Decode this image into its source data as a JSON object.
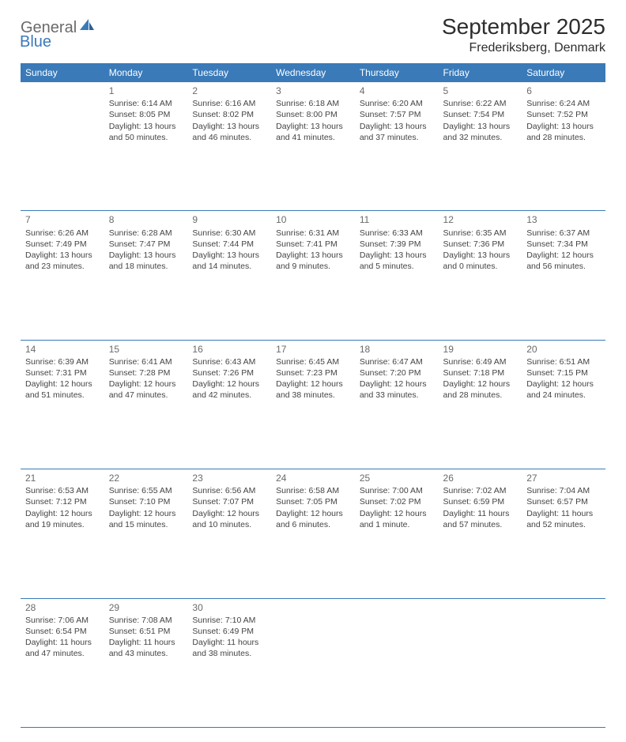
{
  "logo": {
    "part1": "General",
    "part2": "Blue"
  },
  "title": "September 2025",
  "location": "Frederiksberg, Denmark",
  "colors": {
    "header_bg": "#3a7ab8",
    "header_text": "#ffffff",
    "body_text": "#444444",
    "day_num": "#6a6a6a",
    "divider": "#3a7ab8"
  },
  "days_of_week": [
    "Sunday",
    "Monday",
    "Tuesday",
    "Wednesday",
    "Thursday",
    "Friday",
    "Saturday"
  ],
  "weeks": [
    [
      null,
      {
        "n": "1",
        "sunrise": "6:14 AM",
        "sunset": "8:05 PM",
        "daylight": "13 hours and 50 minutes."
      },
      {
        "n": "2",
        "sunrise": "6:16 AM",
        "sunset": "8:02 PM",
        "daylight": "13 hours and 46 minutes."
      },
      {
        "n": "3",
        "sunrise": "6:18 AM",
        "sunset": "8:00 PM",
        "daylight": "13 hours and 41 minutes."
      },
      {
        "n": "4",
        "sunrise": "6:20 AM",
        "sunset": "7:57 PM",
        "daylight": "13 hours and 37 minutes."
      },
      {
        "n": "5",
        "sunrise": "6:22 AM",
        "sunset": "7:54 PM",
        "daylight": "13 hours and 32 minutes."
      },
      {
        "n": "6",
        "sunrise": "6:24 AM",
        "sunset": "7:52 PM",
        "daylight": "13 hours and 28 minutes."
      }
    ],
    [
      {
        "n": "7",
        "sunrise": "6:26 AM",
        "sunset": "7:49 PM",
        "daylight": "13 hours and 23 minutes."
      },
      {
        "n": "8",
        "sunrise": "6:28 AM",
        "sunset": "7:47 PM",
        "daylight": "13 hours and 18 minutes."
      },
      {
        "n": "9",
        "sunrise": "6:30 AM",
        "sunset": "7:44 PM",
        "daylight": "13 hours and 14 minutes."
      },
      {
        "n": "10",
        "sunrise": "6:31 AM",
        "sunset": "7:41 PM",
        "daylight": "13 hours and 9 minutes."
      },
      {
        "n": "11",
        "sunrise": "6:33 AM",
        "sunset": "7:39 PM",
        "daylight": "13 hours and 5 minutes."
      },
      {
        "n": "12",
        "sunrise": "6:35 AM",
        "sunset": "7:36 PM",
        "daylight": "13 hours and 0 minutes."
      },
      {
        "n": "13",
        "sunrise": "6:37 AM",
        "sunset": "7:34 PM",
        "daylight": "12 hours and 56 minutes."
      }
    ],
    [
      {
        "n": "14",
        "sunrise": "6:39 AM",
        "sunset": "7:31 PM",
        "daylight": "12 hours and 51 minutes."
      },
      {
        "n": "15",
        "sunrise": "6:41 AM",
        "sunset": "7:28 PM",
        "daylight": "12 hours and 47 minutes."
      },
      {
        "n": "16",
        "sunrise": "6:43 AM",
        "sunset": "7:26 PM",
        "daylight": "12 hours and 42 minutes."
      },
      {
        "n": "17",
        "sunrise": "6:45 AM",
        "sunset": "7:23 PM",
        "daylight": "12 hours and 38 minutes."
      },
      {
        "n": "18",
        "sunrise": "6:47 AM",
        "sunset": "7:20 PM",
        "daylight": "12 hours and 33 minutes."
      },
      {
        "n": "19",
        "sunrise": "6:49 AM",
        "sunset": "7:18 PM",
        "daylight": "12 hours and 28 minutes."
      },
      {
        "n": "20",
        "sunrise": "6:51 AM",
        "sunset": "7:15 PM",
        "daylight": "12 hours and 24 minutes."
      }
    ],
    [
      {
        "n": "21",
        "sunrise": "6:53 AM",
        "sunset": "7:12 PM",
        "daylight": "12 hours and 19 minutes."
      },
      {
        "n": "22",
        "sunrise": "6:55 AM",
        "sunset": "7:10 PM",
        "daylight": "12 hours and 15 minutes."
      },
      {
        "n": "23",
        "sunrise": "6:56 AM",
        "sunset": "7:07 PM",
        "daylight": "12 hours and 10 minutes."
      },
      {
        "n": "24",
        "sunrise": "6:58 AM",
        "sunset": "7:05 PM",
        "daylight": "12 hours and 6 minutes."
      },
      {
        "n": "25",
        "sunrise": "7:00 AM",
        "sunset": "7:02 PM",
        "daylight": "12 hours and 1 minute."
      },
      {
        "n": "26",
        "sunrise": "7:02 AM",
        "sunset": "6:59 PM",
        "daylight": "11 hours and 57 minutes."
      },
      {
        "n": "27",
        "sunrise": "7:04 AM",
        "sunset": "6:57 PM",
        "daylight": "11 hours and 52 minutes."
      }
    ],
    [
      {
        "n": "28",
        "sunrise": "7:06 AM",
        "sunset": "6:54 PM",
        "daylight": "11 hours and 47 minutes."
      },
      {
        "n": "29",
        "sunrise": "7:08 AM",
        "sunset": "6:51 PM",
        "daylight": "11 hours and 43 minutes."
      },
      {
        "n": "30",
        "sunrise": "7:10 AM",
        "sunset": "6:49 PM",
        "daylight": "11 hours and 38 minutes."
      },
      null,
      null,
      null,
      null
    ]
  ],
  "labels": {
    "sunrise": "Sunrise:",
    "sunset": "Sunset:",
    "daylight": "Daylight:"
  }
}
